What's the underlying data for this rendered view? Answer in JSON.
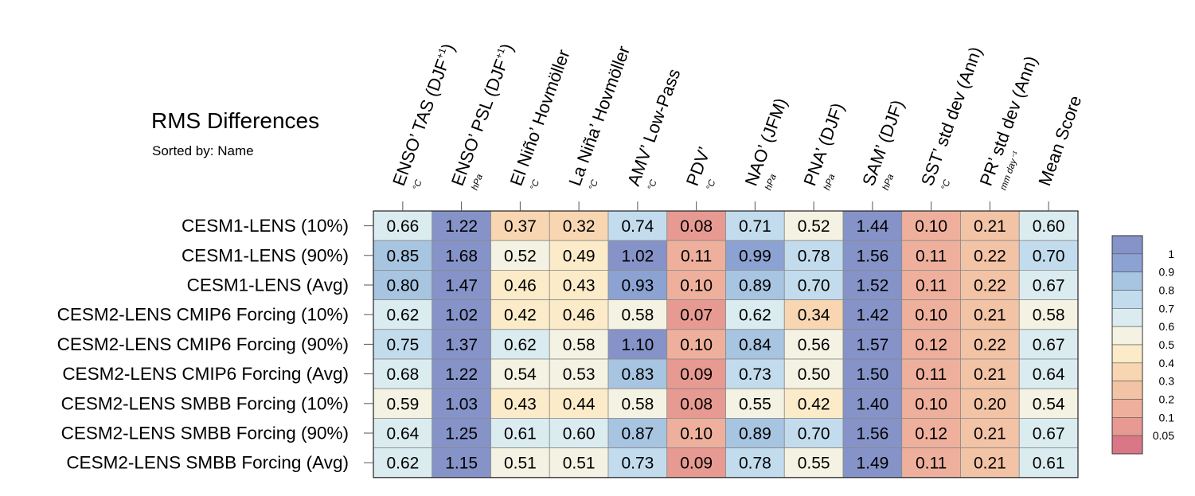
{
  "title": "RMS Differences",
  "subtitle": "Sorted by: Name",
  "chart_data": {
    "type": "heatmap",
    "title": "RMS Differences",
    "subtitle": "Sorted by: Name",
    "columns": [
      {
        "label": "ENSO’ TAS (DJF",
        "sup": "+1",
        "close": ")",
        "unit": "°C"
      },
      {
        "label": "ENSO’ PSL (DJF",
        "sup": "+1",
        "close": ")",
        "unit": "hPa"
      },
      {
        "label": "El Niño’ Hovmöller",
        "sup": "",
        "close": "",
        "unit": "°C"
      },
      {
        "label": "La Niña’ Hovmöller",
        "sup": "",
        "close": "",
        "unit": "°C"
      },
      {
        "label": "AMV’ Low-Pass",
        "sup": "",
        "close": "",
        "unit": "°C"
      },
      {
        "label": "PDV’",
        "sup": "",
        "close": "",
        "unit": "°C"
      },
      {
        "label": "NAO’ (JFM)",
        "sup": "",
        "close": "",
        "unit": "hPa"
      },
      {
        "label": "PNA’ (DJF)",
        "sup": "",
        "close": "",
        "unit": "hPa"
      },
      {
        "label": "SAM’ (DJF)",
        "sup": "",
        "close": "",
        "unit": "hPa"
      },
      {
        "label": "SST’ std dev (Ann)",
        "sup": "",
        "close": "",
        "unit": "°C"
      },
      {
        "label": "PR’ std dev (Ann)",
        "sup": "",
        "close": "",
        "unit": "mm day⁻¹"
      },
      {
        "label": "Mean Score",
        "sup": "",
        "close": "",
        "unit": ""
      }
    ],
    "rows": [
      {
        "name": "CESM1-LENS (10%)",
        "values": [
          "0.66",
          "1.22",
          "0.37",
          "0.32",
          "0.74",
          "0.08",
          "0.71",
          "0.52",
          "1.44",
          "0.10",
          "0.21",
          "0.60"
        ]
      },
      {
        "name": "CESM1-LENS (90%)",
        "values": [
          "0.85",
          "1.68",
          "0.52",
          "0.49",
          "1.02",
          "0.11",
          "0.99",
          "0.78",
          "1.56",
          "0.11",
          "0.22",
          "0.70"
        ]
      },
      {
        "name": "CESM1-LENS (Avg)",
        "values": [
          "0.80",
          "1.47",
          "0.46",
          "0.43",
          "0.93",
          "0.10",
          "0.89",
          "0.70",
          "1.52",
          "0.11",
          "0.22",
          "0.67"
        ]
      },
      {
        "name": "CESM2-LENS CMIP6 Forcing (10%)",
        "values": [
          "0.62",
          "1.02",
          "0.42",
          "0.46",
          "0.58",
          "0.07",
          "0.62",
          "0.34",
          "1.42",
          "0.10",
          "0.21",
          "0.58"
        ]
      },
      {
        "name": "CESM2-LENS CMIP6 Forcing (90%)",
        "values": [
          "0.75",
          "1.37",
          "0.62",
          "0.58",
          "1.10",
          "0.10",
          "0.84",
          "0.56",
          "1.57",
          "0.12",
          "0.22",
          "0.67"
        ]
      },
      {
        "name": "CESM2-LENS CMIP6 Forcing (Avg)",
        "values": [
          "0.68",
          "1.22",
          "0.54",
          "0.53",
          "0.83",
          "0.09",
          "0.73",
          "0.50",
          "1.50",
          "0.11",
          "0.21",
          "0.64"
        ]
      },
      {
        "name": "CESM2-LENS SMBB Forcing (10%)",
        "values": [
          "0.59",
          "1.03",
          "0.43",
          "0.44",
          "0.58",
          "0.08",
          "0.55",
          "0.42",
          "1.40",
          "0.10",
          "0.20",
          "0.54"
        ]
      },
      {
        "name": "CESM2-LENS SMBB Forcing (90%)",
        "values": [
          "0.64",
          "1.25",
          "0.61",
          "0.60",
          "0.87",
          "0.10",
          "0.89",
          "0.70",
          "1.56",
          "0.12",
          "0.21",
          "0.67"
        ]
      },
      {
        "name": "CESM2-LENS SMBB Forcing (Avg)",
        "values": [
          "0.62",
          "1.15",
          "0.51",
          "0.51",
          "0.73",
          "0.09",
          "0.78",
          "0.55",
          "1.49",
          "0.11",
          "0.21",
          "0.61"
        ]
      }
    ],
    "colorbar": {
      "labels": [
        "1",
        "0.9",
        "0.8",
        "0.7",
        "0.6",
        "0.5",
        "0.4",
        "0.3",
        "0.2",
        "0.1",
        "0.05"
      ],
      "thresholds": [
        0.05,
        0.1,
        0.2,
        0.3,
        0.4,
        0.5,
        0.6,
        0.7,
        0.8,
        0.9,
        1
      ],
      "colors": [
        "#d97786",
        "#e79a91",
        "#eeb09c",
        "#f3c3a6",
        "#f7d6b1",
        "#fbebc9",
        "#f4f2e2",
        "#dbecf1",
        "#c2dced",
        "#a7c4e1",
        "#8ca2d2",
        "#8593c8"
      ]
    }
  }
}
